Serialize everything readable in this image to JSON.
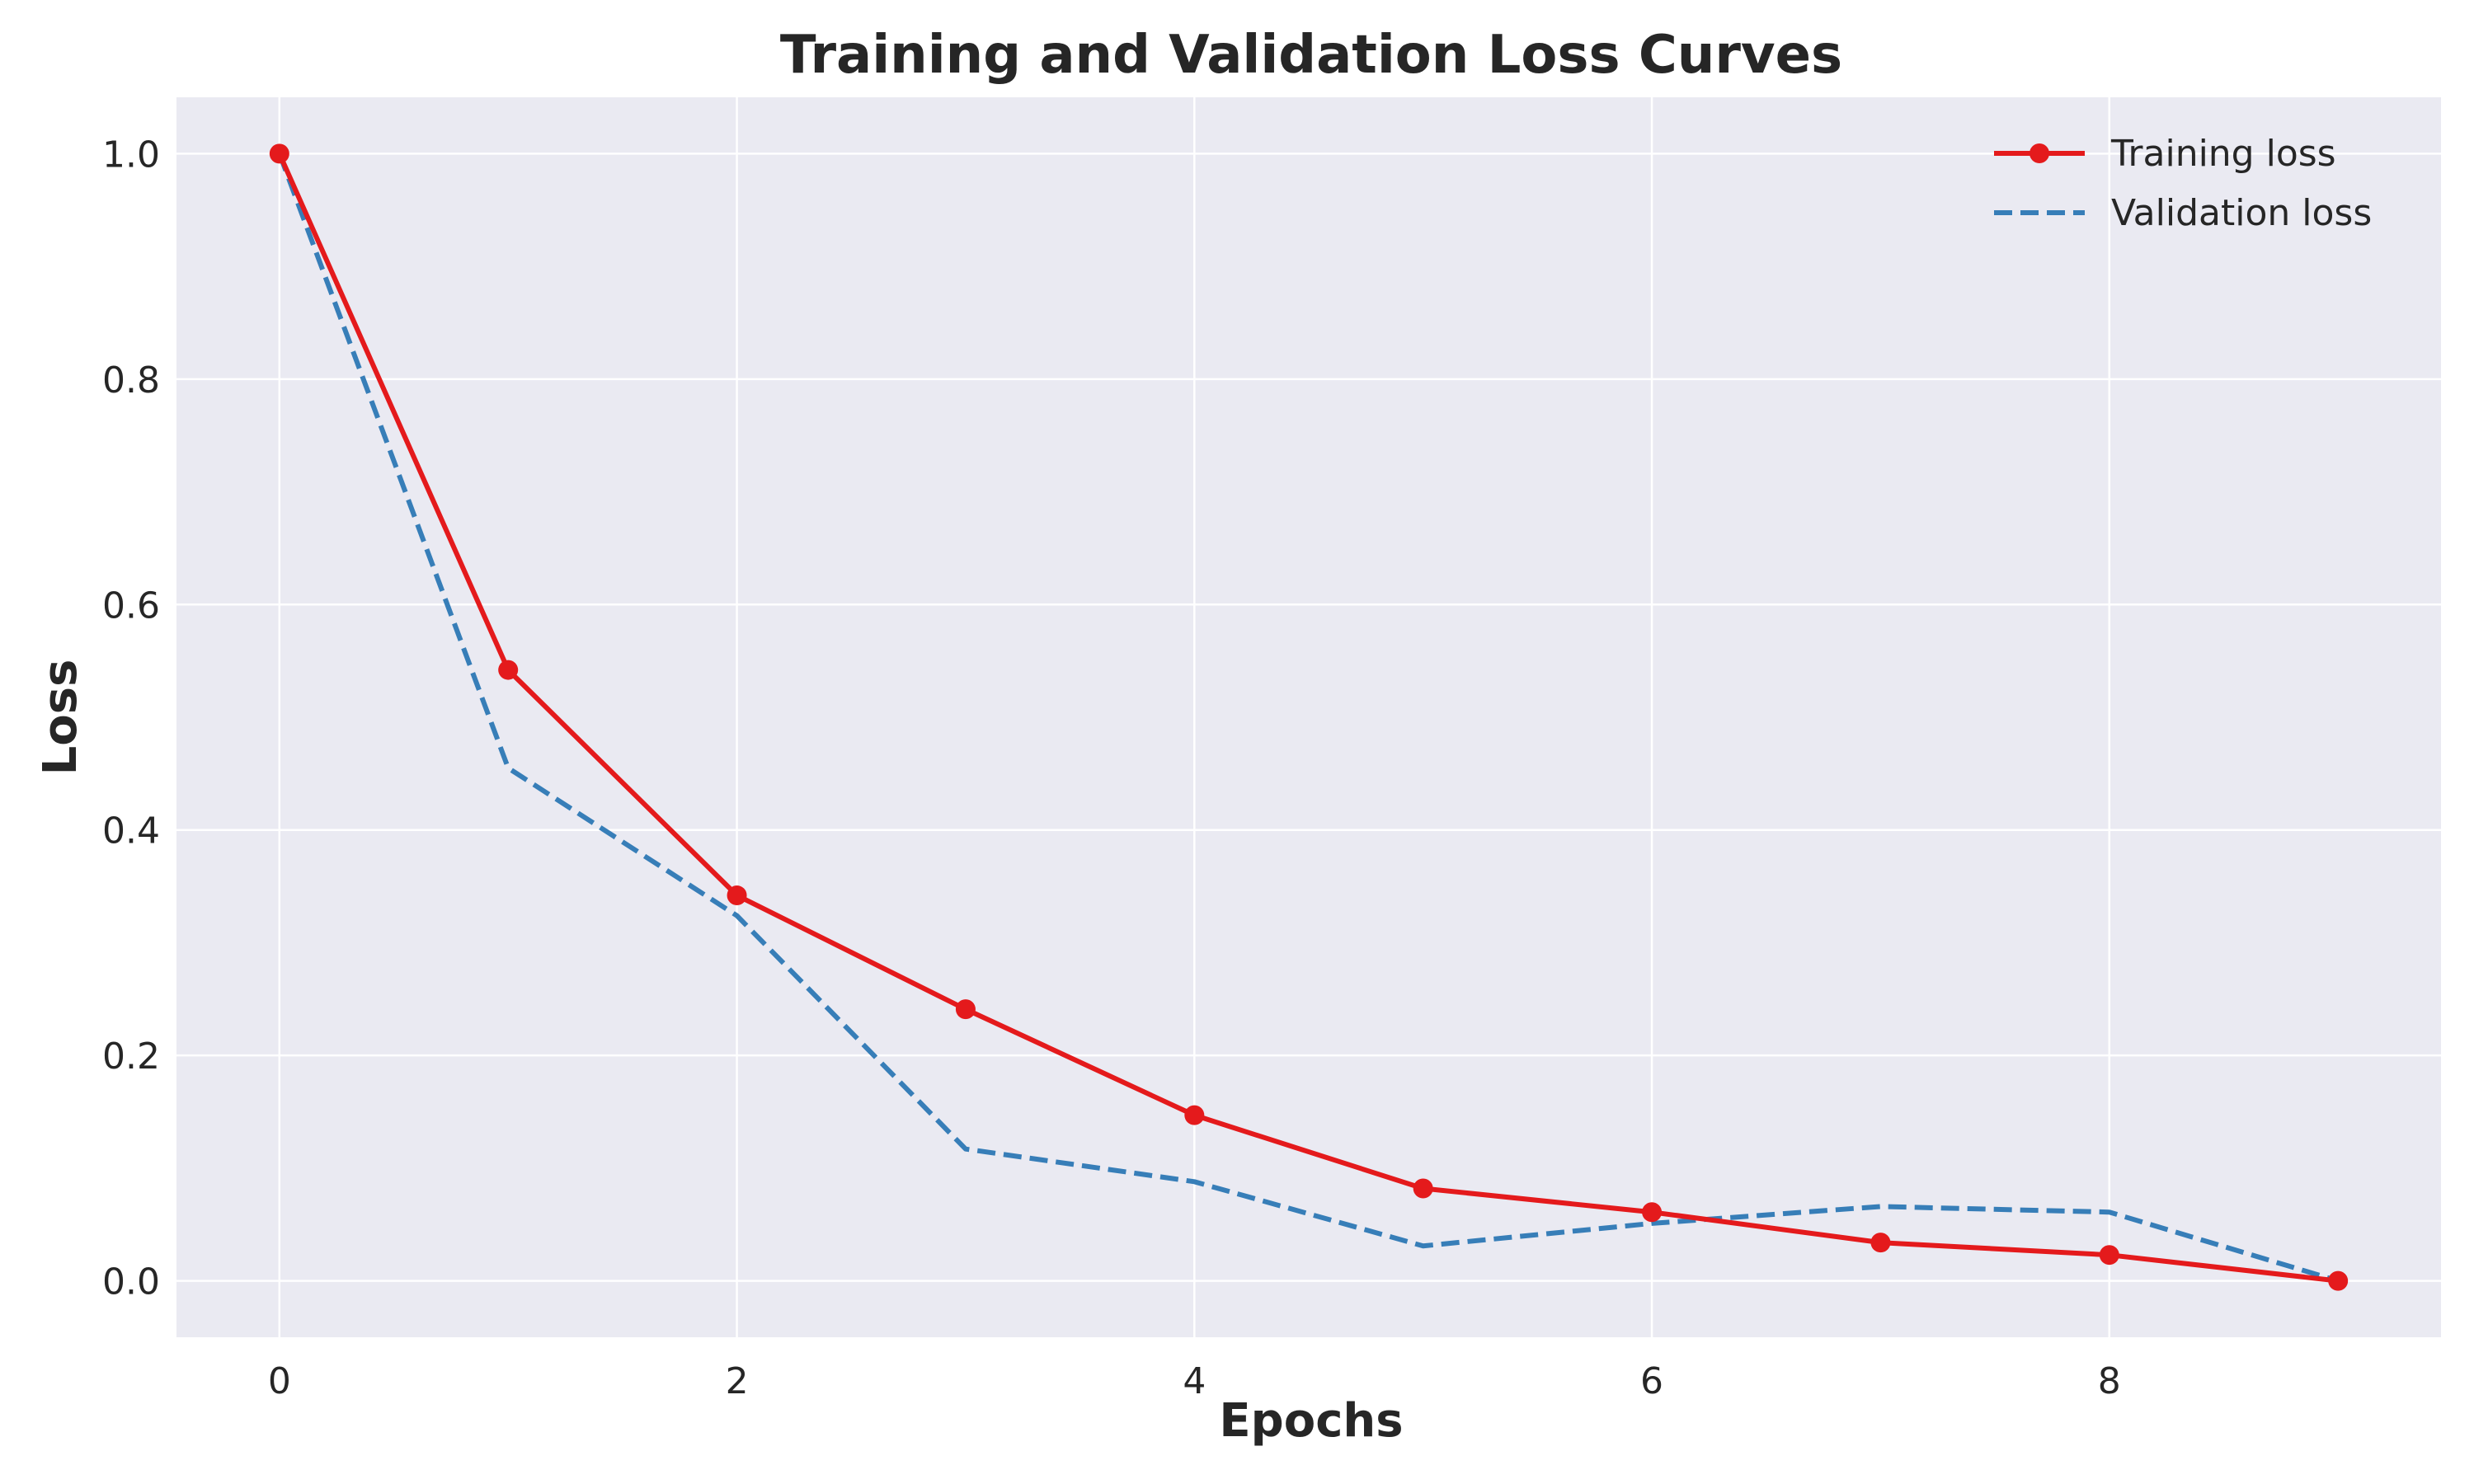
{
  "chart_data": {
    "type": "line",
    "title": "Training and Validation Loss Curves",
    "xlabel": "Epochs",
    "ylabel": "Loss",
    "x": [
      0,
      1,
      2,
      3,
      4,
      5,
      6,
      7,
      8,
      9
    ],
    "xlim": [
      -0.45,
      9.45
    ],
    "ylim": [
      -0.05,
      1.05
    ],
    "xticks": [
      0,
      2,
      4,
      6,
      8
    ],
    "xtick_labels": [
      "0",
      "2",
      "4",
      "6",
      "8"
    ],
    "yticks": [
      0.0,
      0.2,
      0.4,
      0.6,
      0.8,
      1.0
    ],
    "ytick_labels": [
      "0.0",
      "0.2",
      "0.4",
      "0.6",
      "0.8",
      "1.0"
    ],
    "grid": true,
    "legend_position": "top-right",
    "background": "#eaeaf2",
    "series": [
      {
        "name": "Training loss",
        "values": [
          1.0,
          0.542,
          0.342,
          0.241,
          0.147,
          0.082,
          0.061,
          0.034,
          0.023,
          0.0
        ],
        "color": "#e41a1c",
        "line_style": "solid",
        "marker": "circle"
      },
      {
        "name": "Validation loss",
        "values": [
          1.0,
          0.455,
          0.324,
          0.117,
          0.088,
          0.031,
          0.051,
          0.066,
          0.061,
          0.0
        ],
        "color": "#377eb8",
        "line_style": "dashed",
        "marker": "none"
      }
    ]
  }
}
